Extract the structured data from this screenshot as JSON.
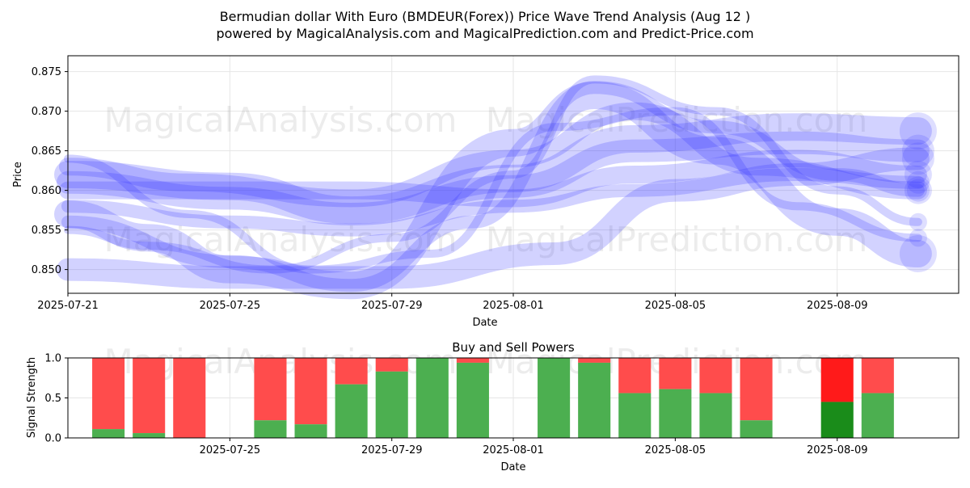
{
  "title_line1": "Bermudian dollar With Euro (BMDEUR(Forex)) Price Wave Trend Analysis (Aug 12 )",
  "title_line2": "powered by MagicalAnalysis.com and MagicalPrediction.com and Predict-Price.com",
  "watermarks": [
    "MagicalAnalysis.com",
    "MagicalPrediction.com"
  ],
  "chart_data": [
    {
      "type": "line",
      "ylabel": "Price",
      "xlabel": "Date",
      "ylim": [
        0.847,
        0.877
      ],
      "xlim": [
        "2025-07-21",
        "2025-08-12"
      ],
      "xticks": [
        "2025-07-21",
        "2025-07-25",
        "2025-07-29",
        "2025-08-01",
        "2025-08-05",
        "2025-08-09"
      ],
      "yticks": [
        0.85,
        0.855,
        0.86,
        0.865,
        0.87,
        0.875
      ],
      "grid": true,
      "color": "#3333ff",
      "series": [
        {
          "x": [
            "2025-07-21",
            "2025-07-25",
            "2025-07-28",
            "2025-08-01",
            "2025-08-04",
            "2025-08-08",
            "2025-08-11"
          ],
          "values": [
            0.862,
            0.8605,
            0.8575,
            0.8615,
            0.8665,
            0.868,
            0.8675
          ]
        },
        {
          "x": [
            "2025-07-21",
            "2025-07-25",
            "2025-07-28",
            "2025-08-01",
            "2025-08-04",
            "2025-08-08",
            "2025-08-11"
          ],
          "values": [
            0.861,
            0.859,
            0.857,
            0.8605,
            0.865,
            0.866,
            0.865
          ]
        },
        {
          "x": [
            "2025-07-21",
            "2025-07-25",
            "2025-07-28",
            "2025-08-01",
            "2025-08-04",
            "2025-08-08",
            "2025-08-11"
          ],
          "values": [
            0.86,
            0.86,
            0.86,
            0.859,
            0.862,
            0.864,
            0.862
          ]
        },
        {
          "x": [
            "2025-07-21",
            "2025-07-25",
            "2025-07-28",
            "2025-08-01",
            "2025-08-04",
            "2025-08-08",
            "2025-08-11"
          ],
          "values": [
            0.858,
            0.856,
            0.855,
            0.858,
            0.86,
            0.862,
            0.861
          ]
        },
        {
          "x": [
            "2025-07-21",
            "2025-07-23",
            "2025-07-26",
            "2025-07-29",
            "2025-08-01",
            "2025-08-03",
            "2025-08-06",
            "2025-08-09",
            "2025-08-11"
          ],
          "values": [
            0.855,
            0.853,
            0.85,
            0.854,
            0.862,
            0.874,
            0.87,
            0.86,
            0.856
          ]
        },
        {
          "x": [
            "2025-07-21",
            "2025-07-23",
            "2025-07-25",
            "2025-07-28",
            "2025-08-01",
            "2025-08-03",
            "2025-08-06",
            "2025-08-09",
            "2025-08-11"
          ],
          "values": [
            0.857,
            0.854,
            0.85,
            0.848,
            0.866,
            0.872,
            0.865,
            0.856,
            0.852
          ]
        },
        {
          "x": [
            "2025-07-21",
            "2025-07-25",
            "2025-07-29",
            "2025-08-02",
            "2025-08-05",
            "2025-08-08",
            "2025-08-11"
          ],
          "values": [
            0.85,
            0.849,
            0.849,
            0.852,
            0.86,
            0.862,
            0.864
          ]
        },
        {
          "x": [
            "2025-07-21",
            "2025-07-24",
            "2025-07-28",
            "2025-08-01",
            "2025-08-04",
            "2025-08-07",
            "2025-08-11"
          ],
          "values": [
            0.863,
            0.861,
            0.859,
            0.864,
            0.87,
            0.863,
            0.86
          ]
        },
        {
          "x": [
            "2025-07-21",
            "2025-07-25",
            "2025-07-28",
            "2025-07-31",
            "2025-08-03",
            "2025-08-06",
            "2025-08-09",
            "2025-08-11"
          ],
          "values": [
            0.856,
            0.851,
            0.848,
            0.856,
            0.873,
            0.868,
            0.862,
            0.86
          ]
        },
        {
          "x": [
            "2025-07-21",
            "2025-07-24",
            "2025-07-27",
            "2025-07-30",
            "2025-08-02",
            "2025-08-05",
            "2025-08-08",
            "2025-08-11"
          ],
          "values": [
            0.864,
            0.857,
            0.85,
            0.852,
            0.868,
            0.87,
            0.858,
            0.854
          ]
        }
      ]
    },
    {
      "type": "bar",
      "title": "Buy and Sell Powers",
      "ylabel": "Signal Strength",
      "xlabel": "Date",
      "ylim": [
        0.0,
        1.0
      ],
      "xlim": [
        "2025-07-21",
        "2025-08-12"
      ],
      "xticks": [
        "2025-07-25",
        "2025-07-29",
        "2025-08-01",
        "2025-08-05",
        "2025-08-09"
      ],
      "yticks": [
        0.0,
        0.5,
        1.0
      ],
      "grid": true,
      "buy_color": "#4caf50",
      "sell_color": "#ff4c4c",
      "highlight_buy_color": "#1a8c1a",
      "highlight_sell_color": "#ff1a1a",
      "bars": [
        {
          "date": "2025-07-22",
          "buy": 0.11
        },
        {
          "date": "2025-07-23",
          "buy": 0.06
        },
        {
          "date": "2025-07-24",
          "buy": 0.0
        },
        {
          "date": "2025-07-26",
          "buy": 0.22
        },
        {
          "date": "2025-07-27",
          "buy": 0.17
        },
        {
          "date": "2025-07-28",
          "buy": 0.67
        },
        {
          "date": "2025-07-29",
          "buy": 0.83
        },
        {
          "date": "2025-07-30",
          "buy": 1.0
        },
        {
          "date": "2025-07-31",
          "buy": 0.94
        },
        {
          "date": "2025-08-02",
          "buy": 1.0
        },
        {
          "date": "2025-08-03",
          "buy": 0.94
        },
        {
          "date": "2025-08-04",
          "buy": 0.56
        },
        {
          "date": "2025-08-05",
          "buy": 0.61
        },
        {
          "date": "2025-08-06",
          "buy": 0.56
        },
        {
          "date": "2025-08-07",
          "buy": 0.22
        },
        {
          "date": "2025-08-09",
          "buy": 0.45,
          "highlight": true
        },
        {
          "date": "2025-08-10",
          "buy": 0.56
        }
      ]
    }
  ]
}
